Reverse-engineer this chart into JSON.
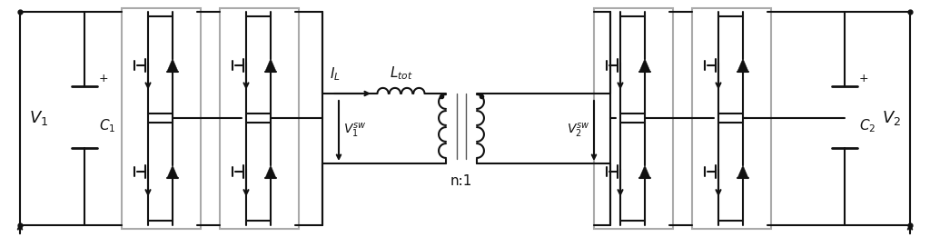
{
  "bg": "#ffffff",
  "lc": "#111111",
  "gc": "#aaaaaa",
  "lw": 1.5,
  "figw": 10.24,
  "figh": 2.61,
  "dpi": 100
}
